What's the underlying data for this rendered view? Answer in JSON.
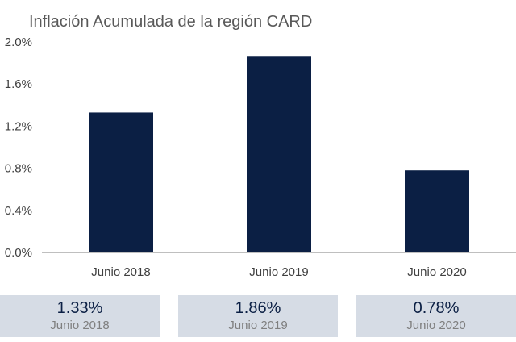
{
  "colors": {
    "bar": "#0b1f44",
    "axis": "#bfbfbf",
    "summary_background": "#d6dce5",
    "summary_value": "#0b1f44",
    "summary_label": "#7f7f7f"
  },
  "chart_data": {
    "type": "bar",
    "title": "Inflación Acumulada de la región CARD",
    "xlabel": "",
    "ylabel": "",
    "categories": [
      "Junio 2018",
      "Junio 2019",
      "Junio 2020"
    ],
    "values": [
      1.33,
      1.86,
      0.78
    ],
    "ylim": [
      0,
      2.0
    ],
    "yticks": [
      0,
      0.4,
      0.8,
      1.2,
      1.6,
      2.0
    ],
    "ytick_labels": [
      "0.0%",
      "0.4%",
      "0.8%",
      "1.2%",
      "1.6%",
      "2.0%"
    ],
    "grid": false,
    "legend": "none"
  },
  "summary": [
    {
      "value": "1.33%",
      "label": "Junio 2018"
    },
    {
      "value": "1.86%",
      "label": "Junio 2019"
    },
    {
      "value": "0.78%",
      "label": "Junio 2020"
    }
  ]
}
